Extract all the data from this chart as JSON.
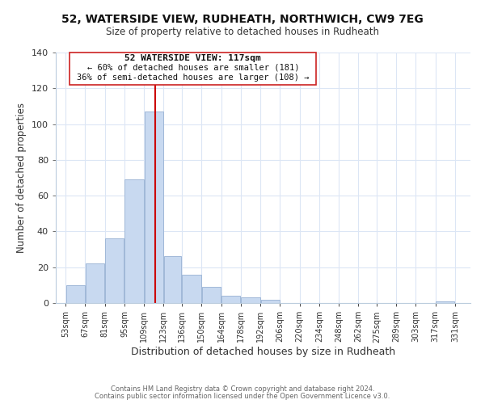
{
  "title": "52, WATERSIDE VIEW, RUDHEATH, NORTHWICH, CW9 7EG",
  "subtitle": "Size of property relative to detached houses in Rudheath",
  "xlabel": "Distribution of detached houses by size in Rudheath",
  "ylabel": "Number of detached properties",
  "bar_left_edges": [
    53,
    67,
    81,
    95,
    109,
    123,
    136,
    150,
    164,
    178,
    192,
    206,
    220,
    234,
    248,
    262,
    275,
    289,
    303,
    317
  ],
  "bar_widths": [
    14,
    14,
    14,
    14,
    14,
    13,
    14,
    14,
    14,
    14,
    14,
    14,
    14,
    14,
    14,
    13,
    14,
    14,
    14,
    14
  ],
  "bar_heights": [
    10,
    22,
    36,
    69,
    107,
    26,
    16,
    9,
    4,
    3,
    2,
    0,
    0,
    0,
    0,
    0,
    0,
    0,
    0,
    1
  ],
  "bar_color": "#c8d9f0",
  "bar_edgecolor": "#a0b8d8",
  "vline_x": 117,
  "vline_color": "#cc0000",
  "ylim": [
    0,
    140
  ],
  "yticks": [
    0,
    20,
    40,
    60,
    80,
    100,
    120,
    140
  ],
  "xtick_labels": [
    "53sqm",
    "67sqm",
    "81sqm",
    "95sqm",
    "109sqm",
    "123sqm",
    "136sqm",
    "150sqm",
    "164sqm",
    "178sqm",
    "192sqm",
    "206sqm",
    "220sqm",
    "234sqm",
    "248sqm",
    "262sqm",
    "275sqm",
    "289sqm",
    "303sqm",
    "317sqm",
    "331sqm"
  ],
  "xtick_positions": [
    53,
    67,
    81,
    95,
    109,
    123,
    136,
    150,
    164,
    178,
    192,
    206,
    220,
    234,
    248,
    262,
    275,
    289,
    303,
    317,
    331
  ],
  "annotation_title": "52 WATERSIDE VIEW: 117sqm",
  "annotation_line1": "← 60% of detached houses are smaller (181)",
  "annotation_line2": "36% of semi-detached houses are larger (108) →",
  "footer1": "Contains HM Land Registry data © Crown copyright and database right 2024.",
  "footer2": "Contains public sector information licensed under the Open Government Licence v3.0.",
  "bg_color": "#ffffff",
  "grid_color": "#dce6f5"
}
